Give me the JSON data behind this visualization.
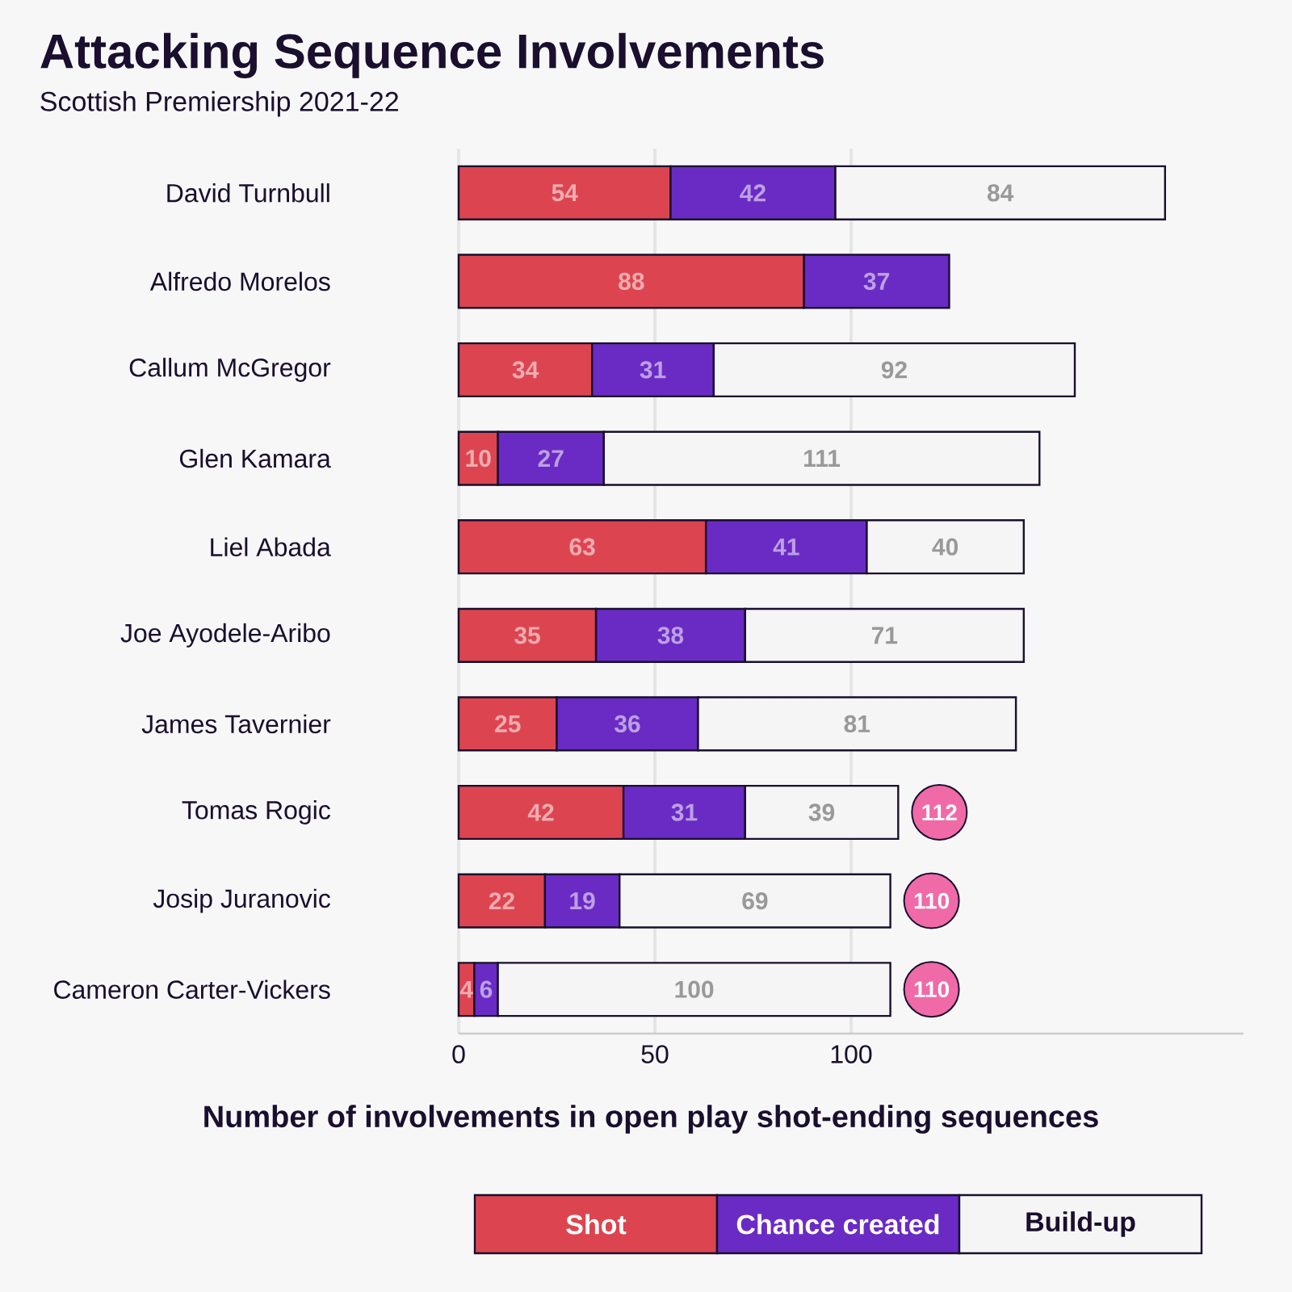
{
  "chart_data": {
    "type": "bar",
    "orientation": "horizontal",
    "stacked": true,
    "title": "Attacking Sequence Involvements",
    "subtitle": "Scottish Premiership 2021-22",
    "xlabel": "Number of involvements in open play shot-ending sequences",
    "categories": [
      "David Turnbull",
      "Alfredo Morelos",
      "Callum McGregor",
      "Glen Kamara",
      "Liel Abada",
      "Joe Ayodele-Aribo",
      "James Tavernier",
      "Tomas Rogic",
      "Josip Juranovic",
      "Cameron Carter-Vickers"
    ],
    "series": [
      {
        "name": "Shot",
        "color": "#dc4550",
        "values": [
          54,
          88,
          34,
          10,
          63,
          35,
          25,
          42,
          22,
          4
        ]
      },
      {
        "name": "Chance created",
        "color": "#6a2bc4",
        "values": [
          42,
          37,
          31,
          27,
          41,
          38,
          36,
          31,
          19,
          6
        ]
      },
      {
        "name": "Build-up",
        "color": "#f5f5f5",
        "values": [
          84,
          null,
          92,
          111,
          40,
          71,
          81,
          39,
          69,
          100
        ]
      }
    ],
    "totals": [
      null,
      null,
      null,
      null,
      null,
      null,
      null,
      "112",
      "110",
      "110"
    ],
    "data_labels": true,
    "xlim": [
      0,
      200
    ],
    "xticks": [
      0,
      50,
      100
    ],
    "grid": "x",
    "legend": "bottom"
  }
}
